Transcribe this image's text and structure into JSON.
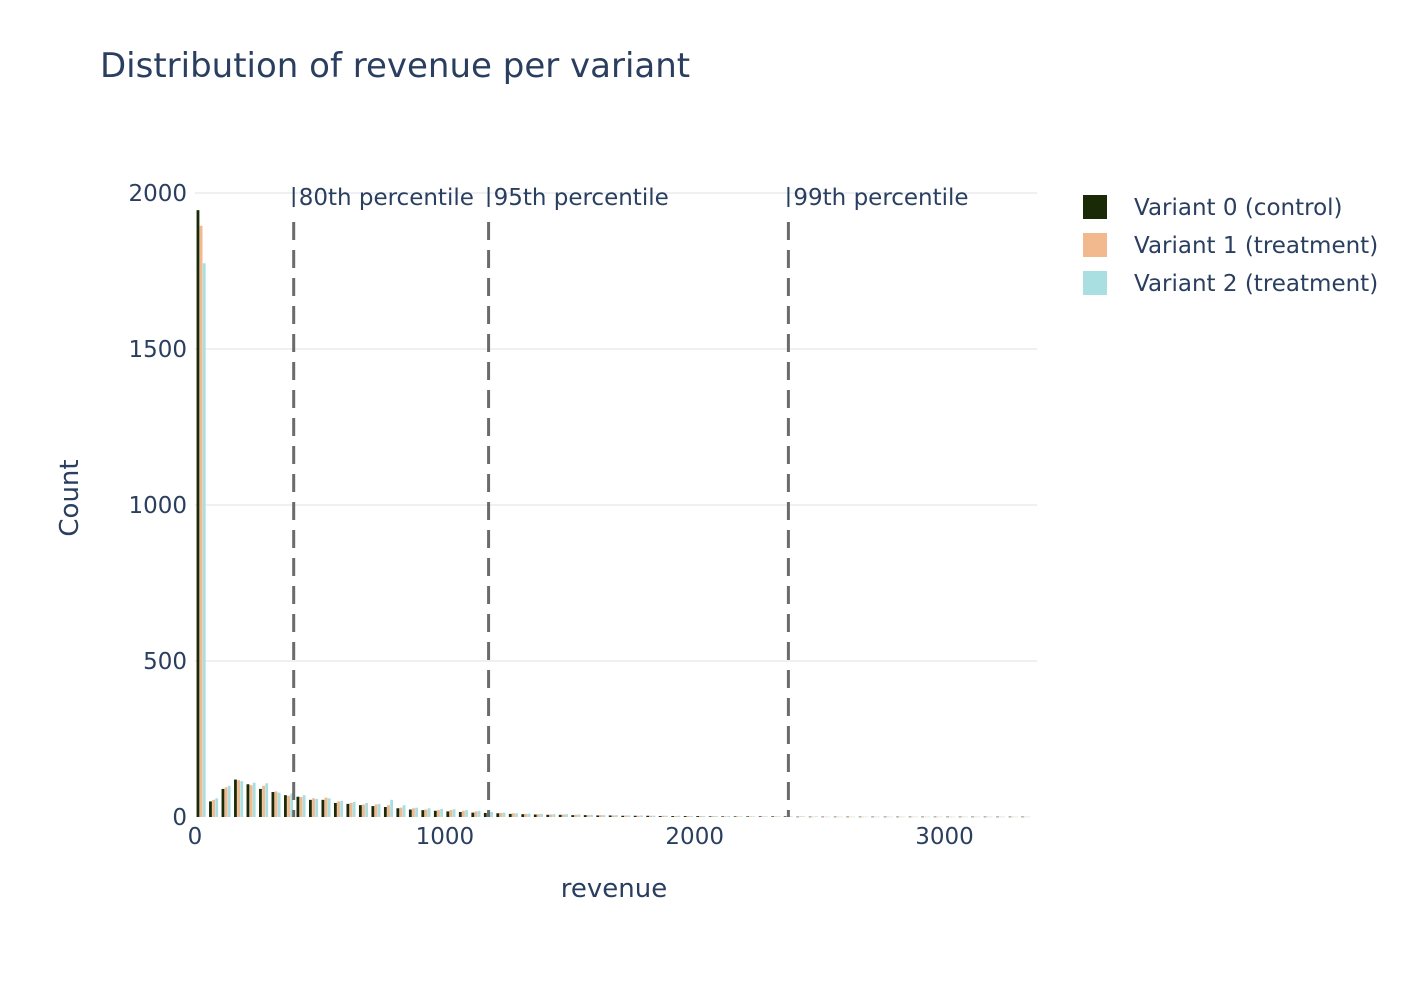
{
  "chart_data": {
    "type": "bar",
    "title": "Distribution of revenue per variant",
    "xlabel": "revenue",
    "ylabel": "Count",
    "xlim": [
      0,
      3370
    ],
    "ylim": [
      0,
      2000
    ],
    "x_ticks": [
      0,
      1000,
      2000,
      3000
    ],
    "x_tick_labels": [
      "0",
      "1000",
      "2000",
      "3000"
    ],
    "y_ticks": [
      0,
      500,
      1000,
      1500,
      2000
    ],
    "y_tick_labels": [
      "0",
      "500",
      "1000",
      "1500",
      "2000"
    ],
    "grid": true,
    "legend_position": "top-right",
    "bin_width": 50,
    "bin_starts": [
      0,
      50,
      100,
      150,
      200,
      250,
      300,
      350,
      400,
      450,
      500,
      550,
      600,
      650,
      700,
      750,
      800,
      850,
      900,
      950,
      1000,
      1050,
      1100,
      1150,
      1200,
      1250,
      1300,
      1350,
      1400,
      1450,
      1500,
      1550,
      1600,
      1650,
      1700,
      1750,
      1800,
      1850,
      1900,
      1950,
      2000,
      2050,
      2100,
      2150,
      2200,
      2250,
      2300,
      2350,
      2400,
      2450,
      2500,
      2550,
      2600,
      2650,
      2700,
      2750,
      2800,
      2850,
      2900,
      2950,
      3000,
      3050,
      3100,
      3150,
      3200,
      3250,
      3300
    ],
    "series": [
      {
        "name": "Variant 0 (control)",
        "color": "#1b2a06",
        "values": [
          1945,
          50,
          90,
          120,
          105,
          90,
          80,
          70,
          65,
          55,
          55,
          45,
          42,
          38,
          35,
          32,
          28,
          24,
          22,
          20,
          18,
          16,
          14,
          13,
          12,
          10,
          9,
          8,
          7,
          7,
          6,
          6,
          5,
          5,
          4,
          4,
          4,
          3,
          3,
          3,
          3,
          2,
          2,
          2,
          2,
          2,
          2,
          2,
          1,
          1,
          1,
          1,
          1,
          1,
          1,
          1,
          1,
          1,
          1,
          1,
          1,
          1,
          1,
          1,
          1,
          1,
          1
        ]
      },
      {
        "name": "Variant 1 (treatment)",
        "color": "#f2b98f",
        "values": [
          1895,
          55,
          95,
          118,
          102,
          100,
          82,
          68,
          64,
          60,
          62,
          50,
          45,
          40,
          40,
          38,
          30,
          28,
          24,
          22,
          22,
          20,
          18,
          14,
          13,
          12,
          10,
          9,
          8,
          8,
          7,
          6,
          6,
          5,
          5,
          4,
          4,
          4,
          3,
          3,
          3,
          3,
          2,
          2,
          2,
          2,
          2,
          2,
          2,
          1,
          1,
          1,
          1,
          1,
          1,
          1,
          1,
          1,
          1,
          1,
          1,
          1,
          1,
          1,
          1,
          1,
          1
        ]
      },
      {
        "name": "Variant 2 (treatment)",
        "color": "#a9dfe0",
        "values": [
          1775,
          60,
          100,
          115,
          110,
          108,
          78,
          75,
          70,
          58,
          60,
          52,
          48,
          45,
          42,
          55,
          38,
          30,
          28,
          26,
          25,
          22,
          20,
          16,
          14,
          12,
          11,
          10,
          9,
          9,
          8,
          7,
          6,
          6,
          5,
          5,
          4,
          4,
          4,
          3,
          3,
          3,
          3,
          2,
          2,
          2,
          2,
          2,
          2,
          2,
          1,
          1,
          1,
          1,
          1,
          1,
          1,
          1,
          1,
          1,
          1,
          1,
          1,
          1,
          1,
          1,
          1
        ]
      }
    ],
    "annotations": [
      {
        "x": 395,
        "label": "80th percentile"
      },
      {
        "x": 1175,
        "label": "95th percentile"
      },
      {
        "x": 2375,
        "label": "99th percentile"
      }
    ]
  }
}
